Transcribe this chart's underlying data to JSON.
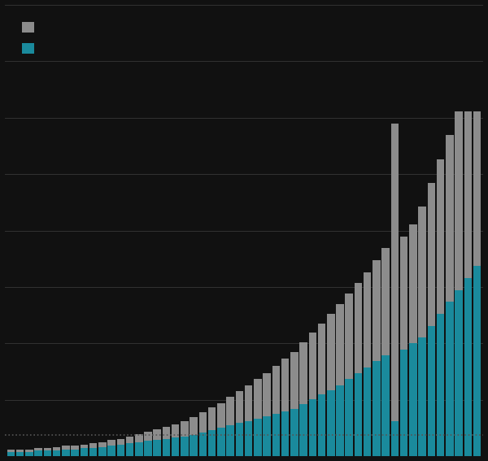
{
  "bar_color_gray": "#8c8c8c",
  "bar_color_teal": "#1a8a9c",
  "background_color": "#111111",
  "grid_color": "#333333",
  "dotted_line_color": "#555555",
  "dotted_line_y": 18,
  "teal_values": [
    4,
    4,
    4,
    5,
    5,
    5,
    6,
    6,
    7,
    7,
    8,
    9,
    10,
    11,
    12,
    13,
    14,
    15,
    16,
    17,
    18,
    20,
    22,
    24,
    26,
    28,
    30,
    32,
    34,
    36,
    38,
    40,
    44,
    48,
    52,
    56,
    60,
    65,
    70,
    75,
    80,
    85,
    30,
    90,
    95,
    100,
    110,
    120,
    130,
    140,
    150,
    160
  ],
  "gray_values": [
    2,
    2,
    2,
    2,
    2,
    3,
    3,
    3,
    3,
    4,
    4,
    5,
    5,
    6,
    7,
    8,
    9,
    10,
    11,
    13,
    15,
    17,
    19,
    21,
    24,
    27,
    30,
    33,
    36,
    40,
    44,
    48,
    52,
    56,
    60,
    64,
    68,
    72,
    76,
    80,
    85,
    90,
    250,
    95,
    100,
    110,
    120,
    130,
    140,
    150,
    140,
    130
  ],
  "ylim": [
    0,
    380
  ],
  "ytick_count": 9,
  "figsize": [
    6.0,
    5.67
  ],
  "dpi": 100
}
